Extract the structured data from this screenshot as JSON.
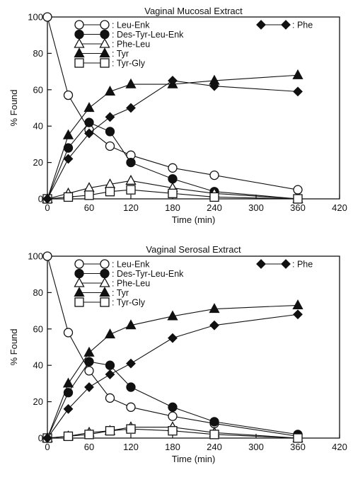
{
  "chart_data": [
    {
      "type": "line",
      "title": "Vaginal Mucosal Extract",
      "xlabel": "Time (min)",
      "ylabel": "% Found",
      "xlim": [
        0,
        420
      ],
      "ylim": [
        0,
        100
      ],
      "xticks": [
        0,
        60,
        120,
        180,
        240,
        300,
        360,
        420
      ],
      "yticks": [
        0,
        20,
        40,
        60,
        80,
        100
      ],
      "grid": false,
      "legend": "top",
      "series": [
        {
          "name": "Leu-Enk",
          "marker": "open-circle",
          "x": [
            0,
            30,
            60,
            90,
            120,
            180,
            240,
            360
          ],
          "y": [
            100,
            57,
            38,
            29,
            24,
            17,
            13,
            5
          ]
        },
        {
          "name": "Des-Tyr-Leu-Enk",
          "marker": "filled-circle",
          "x": [
            0,
            30,
            60,
            90,
            120,
            180,
            240,
            360
          ],
          "y": [
            0,
            28,
            42,
            37,
            20,
            11,
            4,
            0
          ]
        },
        {
          "name": "Phe-Leu",
          "marker": "open-triangle",
          "x": [
            0,
            30,
            60,
            90,
            120,
            180,
            240,
            360
          ],
          "y": [
            0,
            3,
            6,
            8,
            10,
            6,
            3,
            0
          ]
        },
        {
          "name": "Tyr",
          "marker": "filled-triangle",
          "x": [
            0,
            30,
            60,
            90,
            120,
            180,
            240,
            360
          ],
          "y": [
            0,
            35,
            50,
            59,
            63,
            63,
            65,
            68
          ]
        },
        {
          "name": "Tyr-Gly",
          "marker": "open-square",
          "x": [
            0,
            30,
            60,
            90,
            120,
            180,
            240,
            360
          ],
          "y": [
            0,
            1,
            2,
            4,
            5,
            3,
            1,
            0
          ]
        },
        {
          "name": "Phe",
          "marker": "filled-diamond",
          "x": [
            0,
            30,
            60,
            90,
            120,
            180,
            240,
            360
          ],
          "y": [
            0,
            22,
            36,
            45,
            50,
            65,
            62,
            59
          ]
        }
      ]
    },
    {
      "type": "line",
      "title": "Vaginal Serosal Extract",
      "xlabel": "Time (min)",
      "ylabel": "% Found",
      "xlim": [
        0,
        420
      ],
      "ylim": [
        0,
        100
      ],
      "xticks": [
        0,
        60,
        120,
        180,
        240,
        300,
        360,
        420
      ],
      "yticks": [
        0,
        20,
        40,
        60,
        80,
        100
      ],
      "grid": false,
      "legend": "top",
      "series": [
        {
          "name": "Leu-Enk",
          "marker": "open-circle",
          "x": [
            0,
            30,
            60,
            90,
            120,
            180,
            240,
            360
          ],
          "y": [
            100,
            58,
            37,
            22,
            17,
            12,
            8,
            1
          ]
        },
        {
          "name": "Des-Tyr-Leu-Enk",
          "marker": "filled-circle",
          "x": [
            0,
            30,
            60,
            90,
            120,
            180,
            240,
            360
          ],
          "y": [
            0,
            25,
            42,
            40,
            28,
            17,
            9,
            2
          ]
        },
        {
          "name": "Phe-Leu",
          "marker": "open-triangle",
          "x": [
            0,
            30,
            60,
            90,
            120,
            180,
            240,
            360
          ],
          "y": [
            0,
            1,
            3,
            4,
            6,
            6,
            3,
            0
          ]
        },
        {
          "name": "Tyr",
          "marker": "filled-triangle",
          "x": [
            0,
            30,
            60,
            90,
            120,
            180,
            240,
            360
          ],
          "y": [
            0,
            30,
            47,
            57,
            62,
            67,
            71,
            73
          ]
        },
        {
          "name": "Tyr-Gly",
          "marker": "open-square",
          "x": [
            0,
            30,
            60,
            90,
            120,
            180,
            240,
            360
          ],
          "y": [
            0,
            1,
            2,
            4,
            5,
            4,
            2,
            0
          ]
        },
        {
          "name": "Phe",
          "marker": "filled-diamond",
          "x": [
            0,
            30,
            60,
            90,
            120,
            180,
            240,
            360
          ],
          "y": [
            0,
            16,
            28,
            35,
            41,
            55,
            62,
            68
          ]
        }
      ]
    }
  ]
}
